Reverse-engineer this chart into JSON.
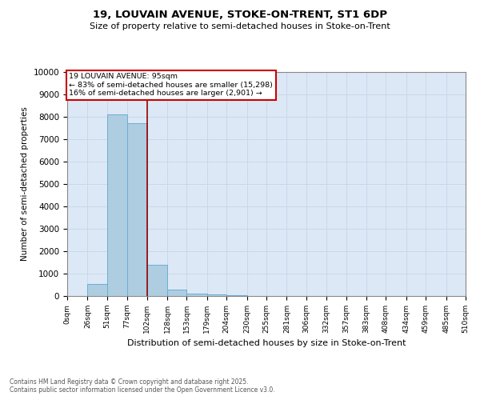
{
  "title1": "19, LOUVAIN AVENUE, STOKE-ON-TRENT, ST1 6DP",
  "title2": "Size of property relative to semi-detached houses in Stoke-on-Trent",
  "xlabel": "Distribution of semi-detached houses by size in Stoke-on-Trent",
  "ylabel": "Number of semi-detached properties",
  "footer": "Contains HM Land Registry data © Crown copyright and database right 2025.\nContains public sector information licensed under the Open Government Licence v3.0.",
  "annotation_title": "19 LOUVAIN AVENUE: 95sqm",
  "annotation_line1": "← 83% of semi-detached houses are smaller (15,298)",
  "annotation_line2": "16% of semi-detached houses are larger (2,901) →",
  "property_size": 95,
  "bar_edges": [
    0,
    26,
    51,
    77,
    102,
    128,
    153,
    179,
    204,
    230,
    255,
    281,
    306,
    332,
    357,
    383,
    408,
    434,
    459,
    485,
    510
  ],
  "bar_heights": [
    0,
    550,
    8100,
    7700,
    1400,
    300,
    120,
    60,
    30,
    10,
    0,
    0,
    0,
    0,
    0,
    0,
    0,
    0,
    0,
    0
  ],
  "bar_color": "#aecde0",
  "bar_edge_color": "#6aaed6",
  "vline_color": "#990000",
  "vline_x": 102,
  "annotation_box_color": "#cc0000",
  "ylim": [
    0,
    10000
  ],
  "yticks": [
    0,
    1000,
    2000,
    3000,
    4000,
    5000,
    6000,
    7000,
    8000,
    9000,
    10000
  ],
  "grid_color": "#c8d8ec",
  "bg_color": "#dce8f5",
  "x_tick_labels": [
    "0sqm",
    "26sqm",
    "51sqm",
    "77sqm",
    "102sqm",
    "128sqm",
    "153sqm",
    "179sqm",
    "204sqm",
    "230sqm",
    "255sqm",
    "281sqm",
    "306sqm",
    "332sqm",
    "357sqm",
    "383sqm",
    "408sqm",
    "434sqm",
    "459sqm",
    "485sqm",
    "510sqm"
  ],
  "fig_width": 6.0,
  "fig_height": 5.0
}
